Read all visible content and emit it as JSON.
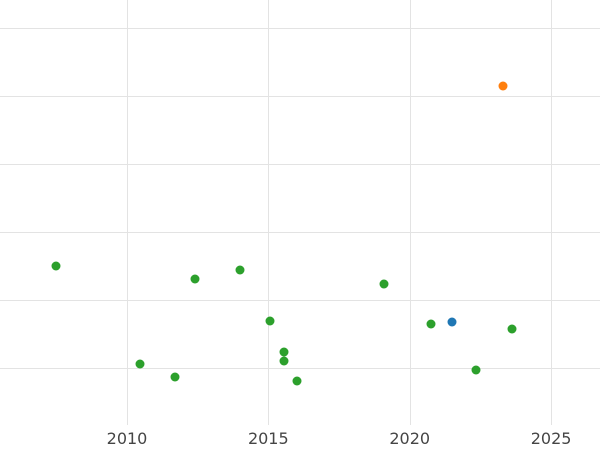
{
  "chart_data": {
    "type": "scatter",
    "title": "",
    "xlabel": "",
    "ylabel": "",
    "grid": true,
    "legend": "none",
    "xlim": [
      2005.51,
      2026.73
    ],
    "ylim": [
      0.16,
      6.41
    ],
    "x_ticks": [
      2010,
      2015,
      2020,
      2025
    ],
    "x_tick_labels": [
      "2010",
      "2015",
      "2020",
      "2025"
    ],
    "y_gridline_values": [
      1,
      2,
      3,
      4,
      5,
      6
    ],
    "colors": {
      "green": "#2ca02c",
      "blue": "#1f77b4",
      "orange": "#ff7f0e",
      "grid": "#e3e3e3",
      "tick_label": "#454545",
      "background": "#ffffff"
    },
    "series": [
      {
        "name": "green-points",
        "color": "#2ca02c",
        "points": [
          [
            2007.5,
            2.5
          ],
          [
            2010.45,
            1.06
          ],
          [
            2011.7,
            0.87
          ],
          [
            2012.4,
            2.31
          ],
          [
            2014.0,
            2.44
          ],
          [
            2015.05,
            1.69
          ],
          [
            2015.55,
            1.24
          ],
          [
            2015.55,
            1.1
          ],
          [
            2016.0,
            0.81
          ],
          [
            2019.1,
            2.24
          ],
          [
            2020.75,
            1.65
          ],
          [
            2022.35,
            0.97
          ],
          [
            2023.6,
            1.57
          ]
        ]
      },
      {
        "name": "blue-points",
        "color": "#1f77b4",
        "points": [
          [
            2021.5,
            1.68
          ]
        ]
      },
      {
        "name": "orange-points",
        "color": "#ff7f0e",
        "points": [
          [
            2023.3,
            5.15
          ]
        ]
      }
    ]
  }
}
